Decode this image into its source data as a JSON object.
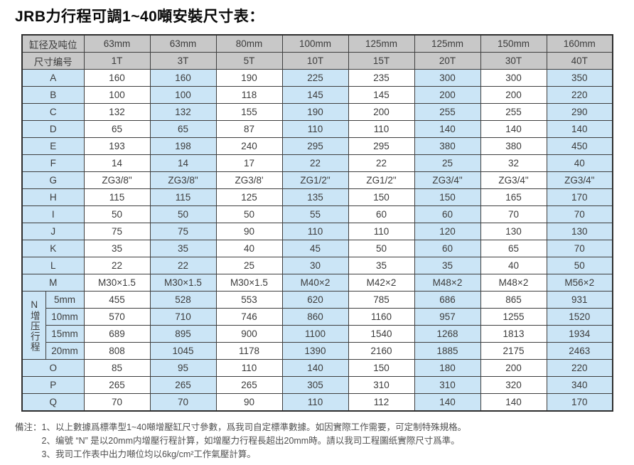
{
  "title": "JRB力行程可調1~40噸安裝尺寸表：",
  "table": {
    "header": {
      "label": "缸径及吨位",
      "values": [
        "63mm",
        "63mm",
        "80mm",
        "100mm",
        "125mm",
        "125mm",
        "150mm",
        "160mm"
      ]
    },
    "subheader": {
      "label": "尺寸编号",
      "values": [
        "1T",
        "3T",
        "5T",
        "10T",
        "15T",
        "20T",
        "30T",
        "40T"
      ]
    },
    "rows_top": [
      {
        "label": "A",
        "values": [
          "160",
          "160",
          "190",
          "225",
          "235",
          "300",
          "300",
          "350"
        ]
      },
      {
        "label": "B",
        "values": [
          "100",
          "100",
          "118",
          "145",
          "145",
          "200",
          "200",
          "220"
        ]
      },
      {
        "label": "C",
        "values": [
          "132",
          "132",
          "155",
          "190",
          "200",
          "255",
          "255",
          "290"
        ]
      },
      {
        "label": "D",
        "values": [
          "65",
          "65",
          "87",
          "110",
          "110",
          "140",
          "140",
          "140"
        ]
      },
      {
        "label": "E",
        "values": [
          "193",
          "198",
          "240",
          "295",
          "295",
          "380",
          "380",
          "450"
        ]
      },
      {
        "label": "F",
        "values": [
          "14",
          "14",
          "17",
          "22",
          "22",
          "25",
          "32",
          "40"
        ]
      },
      {
        "label": "G",
        "values": [
          "ZG3/8\"",
          "ZG3/8\"",
          "ZG3/8'",
          "ZG1/2\"",
          "ZG1/2\"",
          "ZG3/4\"",
          "ZG3/4\"",
          "ZG3/4\""
        ]
      },
      {
        "label": "H",
        "values": [
          "115",
          "115",
          "125",
          "135",
          "150",
          "150",
          "165",
          "170"
        ]
      },
      {
        "label": "I",
        "values": [
          "50",
          "50",
          "50",
          "55",
          "60",
          "60",
          "70",
          "70"
        ]
      },
      {
        "label": "J",
        "values": [
          "75",
          "75",
          "90",
          "110",
          "110",
          "120",
          "130",
          "130"
        ]
      },
      {
        "label": "K",
        "values": [
          "35",
          "35",
          "40",
          "45",
          "50",
          "60",
          "65",
          "70"
        ]
      },
      {
        "label": "L",
        "values": [
          "22",
          "22",
          "25",
          "30",
          "35",
          "35",
          "40",
          "50"
        ]
      },
      {
        "label": "M",
        "values": [
          "M30×1.5",
          "M30×1.5",
          "M30×1.5",
          "M40×2",
          "M42×2",
          "M48×2",
          "M48×2",
          "M56×2"
        ]
      }
    ],
    "n_group": {
      "group_label": "N增压行程",
      "rows": [
        {
          "label": "5mm",
          "values": [
            "455",
            "528",
            "553",
            "620",
            "785",
            "686",
            "865",
            "931"
          ]
        },
        {
          "label": "10mm",
          "values": [
            "570",
            "710",
            "746",
            "860",
            "1160",
            "957",
            "1255",
            "1520"
          ]
        },
        {
          "label": "15mm",
          "values": [
            "689",
            "895",
            "900",
            "1100",
            "1540",
            "1268",
            "1813",
            "1934"
          ]
        },
        {
          "label": "20mm",
          "values": [
            "808",
            "1045",
            "1178",
            "1390",
            "2160",
            "1885",
            "2175",
            "2463"
          ]
        }
      ]
    },
    "rows_bottom": [
      {
        "label": "O",
        "values": [
          "85",
          "95",
          "110",
          "140",
          "150",
          "180",
          "200",
          "220"
        ]
      },
      {
        "label": "P",
        "values": [
          "265",
          "265",
          "265",
          "305",
          "310",
          "310",
          "320",
          "340"
        ]
      },
      {
        "label": "Q",
        "values": [
          "70",
          "70",
          "90",
          "110",
          "112",
          "140",
          "140",
          "170"
        ]
      }
    ]
  },
  "notes": {
    "prefix": "備注：",
    "items": [
      "1、以上數據爲標準型1~40噸增壓缸尺寸參數，爲我司自定標準數據。如因實際工作需要，可定制特殊規格。",
      "2、编號 “N” 是以20mm内增壓行程計算，如增壓力行程長超出20mm時。請以我司工程圖纸實際尺寸爲準。",
      "3、我司工作表中出力噸位均以6kg/cm²工作氣壓計算。"
    ]
  },
  "colors": {
    "header_bg": "#c8c8c8",
    "stripe_blue": "#cbe5f6",
    "stripe_white": "#ffffff",
    "border": "#3f3f3f",
    "text": "#3c3c3c"
  }
}
